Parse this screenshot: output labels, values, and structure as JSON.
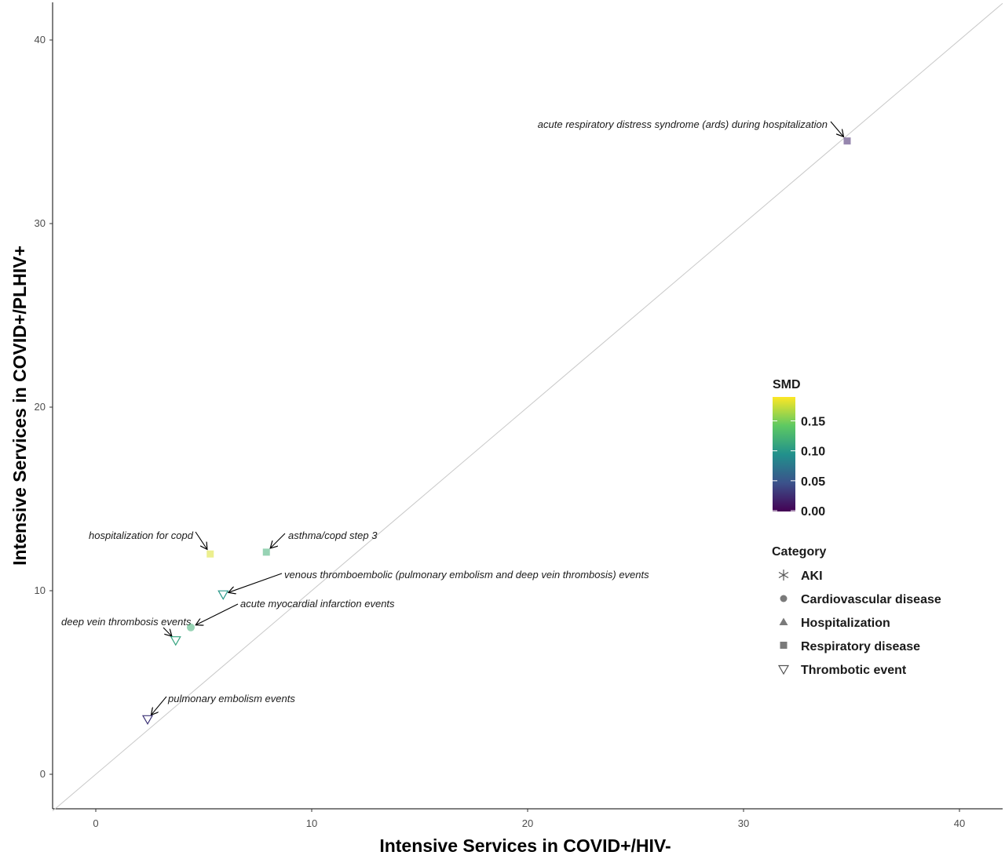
{
  "chart_data": {
    "type": "scatter",
    "title": "",
    "xlabel": "Intensive Services in COVID+/HIV-",
    "ylabel": "Intensive Services in COVID+/PLHIV+",
    "xlim": [
      -2,
      42
    ],
    "ylim": [
      -2,
      42
    ],
    "xticks": [
      0,
      10,
      20,
      30,
      40
    ],
    "yticks": [
      0,
      10,
      20,
      30,
      40
    ],
    "grid": false,
    "reference_line": "y = x",
    "points": [
      {
        "label": "acute respiratory distress syndrome (ards) during hospitalization",
        "x": 34.8,
        "y": 34.5,
        "category": "Respiratory disease",
        "smd": 0.02
      },
      {
        "label": "hospitalization for copd",
        "x": 5.3,
        "y": 12.0,
        "category": "Respiratory disease",
        "smd": 0.18
      },
      {
        "label": "asthma/copd step 3",
        "x": 7.9,
        "y": 12.1,
        "category": "Respiratory disease",
        "smd": 0.12
      },
      {
        "label": "venous thromboembolic (pulmonary embolism and deep vein thrombosis) events",
        "x": 5.9,
        "y": 9.8,
        "category": "Thrombotic event",
        "smd": 0.1
      },
      {
        "label": "acute myocardial infarction events",
        "x": 4.4,
        "y": 8.0,
        "category": "Cardiovascular disease",
        "smd": 0.12
      },
      {
        "label": "deep vein thrombosis events",
        "x": 3.7,
        "y": 7.3,
        "category": "Thrombotic event",
        "smd": 0.11
      },
      {
        "label": "pulmonary embolism events",
        "x": 2.4,
        "y": 3.0,
        "category": "Thrombotic event",
        "smd": 0.03
      }
    ],
    "legend": {
      "placement": "right",
      "color_title": "SMD",
      "color_ticks": [
        "0.15",
        "0.10",
        "0.05",
        "0.00"
      ],
      "color_range": [
        0.0,
        0.19
      ],
      "shape_title": "Category",
      "categories": [
        {
          "name": "AKI",
          "shape": "asterisk"
        },
        {
          "name": "Cardiovascular disease",
          "shape": "circle"
        },
        {
          "name": "Hospitalization",
          "shape": "triangle"
        },
        {
          "name": "Respiratory disease",
          "shape": "square"
        },
        {
          "name": "Thrombotic event",
          "shape": "triangle-down-open"
        }
      ]
    }
  }
}
